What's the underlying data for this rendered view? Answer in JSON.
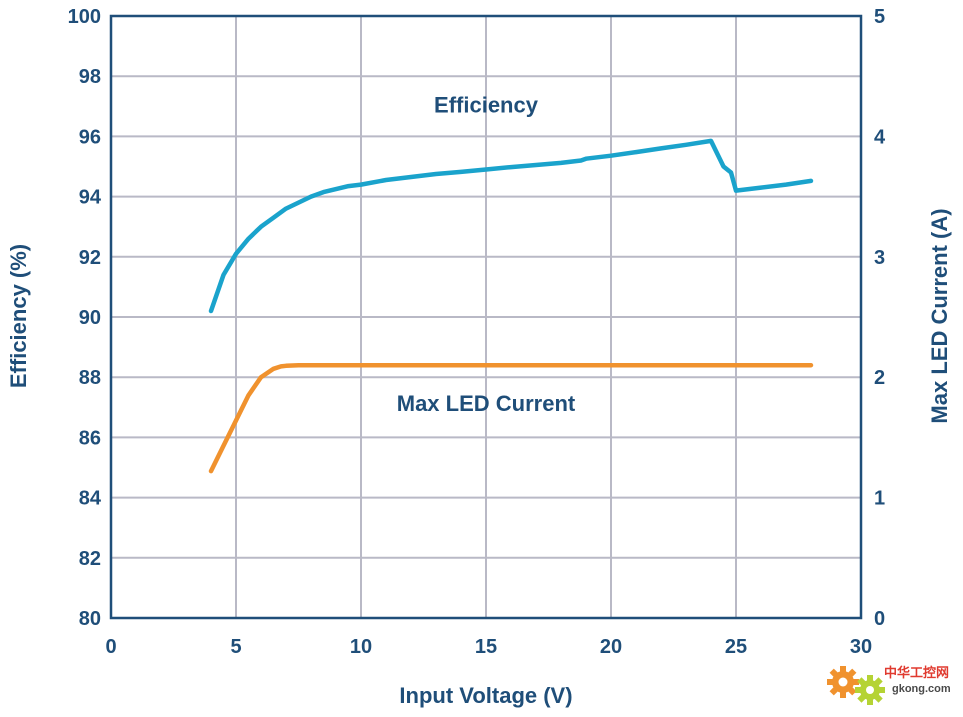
{
  "chart_data": {
    "type": "line",
    "xlabel": "Input Voltage (V)",
    "ylabel": "Efficiency (%)",
    "y2label": "Max LED Current (A)",
    "xlim": [
      0,
      30
    ],
    "ylim": [
      80,
      100
    ],
    "y2lim": [
      0,
      5
    ],
    "xticks": [
      0,
      5,
      10,
      15,
      20,
      25,
      30
    ],
    "yticks": [
      80,
      82,
      84,
      86,
      88,
      90,
      92,
      94,
      96,
      98,
      100
    ],
    "y2ticks": [
      0,
      1,
      2,
      3,
      4,
      5
    ],
    "grid": true,
    "series": [
      {
        "name": "Efficiency",
        "axis": "left",
        "color": "#1aa3cc",
        "x": [
          4,
          4.5,
          5,
          5.5,
          6,
          6.5,
          7,
          7.5,
          8,
          8.5,
          9,
          9.5,
          10,
          11,
          12,
          13,
          14,
          15,
          16,
          17,
          18,
          18.8,
          19,
          20,
          21,
          22,
          23,
          24,
          24.5,
          24.8,
          25,
          26,
          27,
          28
        ],
        "values": [
          90.2,
          91.4,
          92.1,
          92.6,
          93.0,
          93.3,
          93.6,
          93.8,
          94.0,
          94.15,
          94.25,
          94.35,
          94.4,
          94.55,
          94.65,
          94.75,
          94.82,
          94.9,
          94.98,
          95.05,
          95.12,
          95.2,
          95.26,
          95.36,
          95.48,
          95.6,
          95.72,
          95.85,
          95.0,
          94.8,
          94.2,
          94.3,
          94.4,
          94.52
        ]
      },
      {
        "name": "Max LED Current",
        "axis": "right",
        "color": "#f0922e",
        "x": [
          4,
          4.5,
          5,
          5.5,
          6,
          6.5,
          6.8,
          7,
          7.5,
          10,
          15,
          20,
          25,
          28
        ],
        "values": [
          1.22,
          1.43,
          1.64,
          1.85,
          2.0,
          2.07,
          2.09,
          2.095,
          2.1,
          2.1,
          2.1,
          2.1,
          2.1,
          2.1
        ]
      }
    ],
    "annotations": [
      {
        "text": "Efficiency",
        "x": 15,
        "y": 96.8,
        "axis": "left"
      },
      {
        "text": "Max LED Current",
        "x": 15,
        "y": 1.72,
        "axis": "right"
      }
    ]
  },
  "watermark": {
    "line1": "中华工控网",
    "line2": "gkong.com",
    "gear_colors": [
      "#f0922e",
      "#b5d334"
    ]
  }
}
